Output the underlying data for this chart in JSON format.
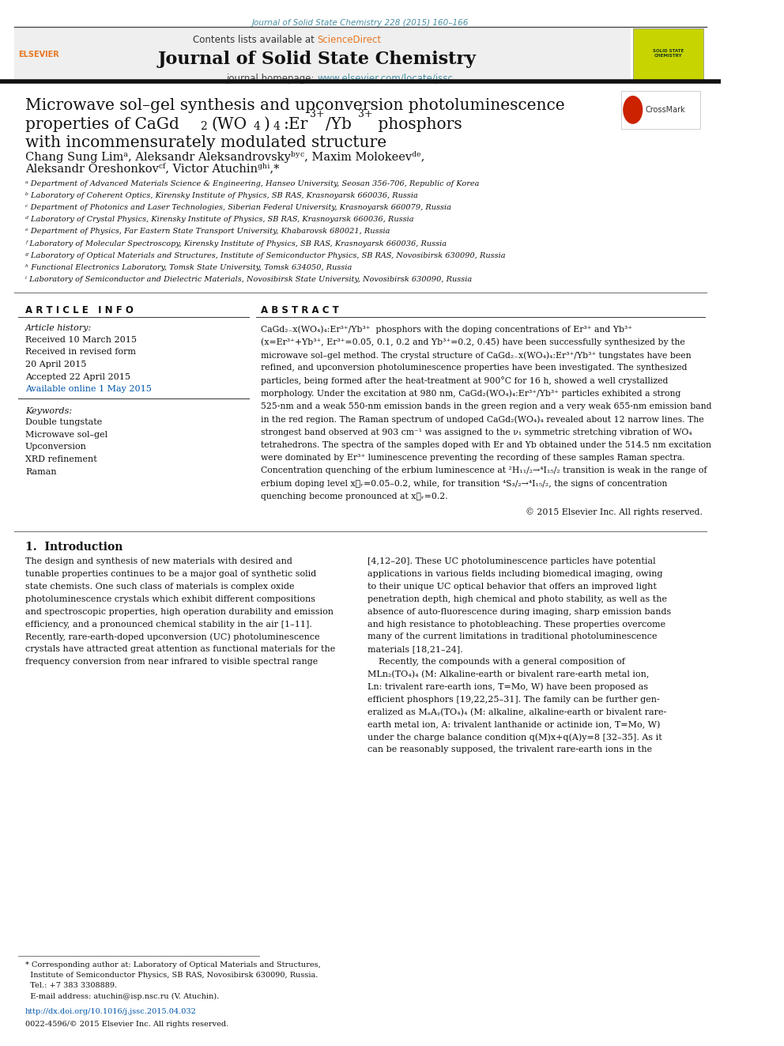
{
  "page_width": 9.92,
  "page_height": 13.23,
  "background_color": "#ffffff",
  "top_journal_ref": "Journal of Solid State Chemistry 228 (2015) 160–166",
  "top_journal_ref_color": "#4a90a4",
  "header_bg_color": "#efefef",
  "header_title": "Journal of Solid State Chemistry",
  "header_contents": "Contents lists available at ",
  "header_sciencedirect": "ScienceDirect",
  "header_sciencedirect_color": "#e87722",
  "header_homepage_url_color": "#4a90a4",
  "article_title_line1": "Microwave sol–gel synthesis and upconversion photoluminescence",
  "article_title_line2": "properties of CaGd",
  "article_title_line3": "with incommensurately modulated structure",
  "affil_a": "ᵃ Department of Advanced Materials Science & Engineering, Hanseo University, Seosan 356-706, Republic of Korea",
  "affil_b": "ᵇ Laboratory of Coherent Optics, Kirensky Institute of Physics, SB RAS, Krasnoyarsk 660036, Russia",
  "affil_c": "ᶜ Department of Photonics and Laser Technologies, Siberian Federal University, Krasnoyarsk 660079, Russia",
  "affil_d": "ᵈ Laboratory of Crystal Physics, Kirensky Institute of Physics, SB RAS, Krasnoyarsk 660036, Russia",
  "affil_e": "ᵉ Department of Physics, Far Eastern State Transport University, Khabarovsk 680021, Russia",
  "affil_f": "ᶠ Laboratory of Molecular Spectroscopy, Kirensky Institute of Physics, SB RAS, Krasnoyarsk 660036, Russia",
  "affil_g": "ᵍ Laboratory of Optical Materials and Structures, Institute of Semiconductor Physics, SB RAS, Novosibirsk 630090, Russia",
  "affil_h": "ʰ Functional Electronics Laboratory, Tomsk State University, Tomsk 634050, Russia",
  "affil_i": "ⁱ Laboratory of Semiconductor and Dielectric Materials, Novosibirsk State University, Novosibirsk 630090, Russia",
  "article_info_title": "A R T I C L E   I N F O",
  "abstract_title": "A B S T R A C T",
  "keywords": "Double tungstate\nMicrowave sol–gel\nUpconversion\nXRD refinement\nRaman",
  "copyright": "© 2015 Elsevier Inc. All rights reserved.",
  "section1_title": "1.  Introduction",
  "doi_line": "http://dx.doi.org/10.1016/j.jssc.2015.04.032",
  "issn_line": "0022-4596/© 2015 Elsevier Inc. All rights reserved."
}
